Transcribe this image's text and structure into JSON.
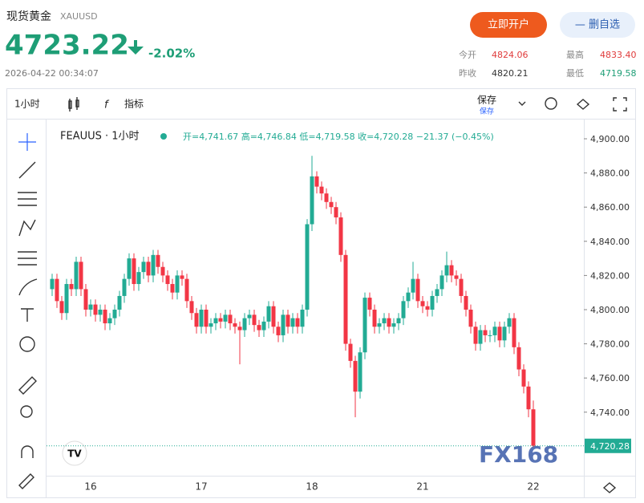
{
  "header": {
    "title": "现货黄金",
    "symbol": "XAUUSD",
    "price": "4723.22",
    "change": "-2.02%",
    "time": "2026-04-22 00:34:07",
    "open_account": "立即开户",
    "remove_watch": "— 删自选",
    "stats": [
      {
        "label": "今开",
        "value": "4824.06"
      },
      {
        "label": "最高",
        "value": "4833.40"
      },
      {
        "label": "昨收",
        "value": "4820.21"
      },
      {
        "label": "最低",
        "value": "4719.58"
      }
    ]
  },
  "toolbar": {
    "interval": "1小时",
    "indicator": "指标",
    "save": "保存",
    "save_sub": "保存"
  },
  "chart_data": {
    "type": "candlestick",
    "legend_symbol": "FEAUUS · 1小时",
    "ohlc_text": "开=4,741.67 高=4,746.84 低=4,719.58 收=4,720.28 −21.37 (−0.45%)",
    "watermark": "FX168",
    "up_color": "#22ab94",
    "down_color": "#f23645",
    "last_price": {
      "value": 4720.28,
      "label": "4,720.28"
    },
    "ylim": [
      4702.8,
      4910.8
    ],
    "yticks": [
      {
        "value": 4740,
        "label": "4,740.00"
      },
      {
        "value": 4760,
        "label": "4,760.00"
      },
      {
        "value": 4780,
        "label": "4,780.00"
      },
      {
        "value": 4800,
        "label": "4,800.00"
      },
      {
        "value": 4820,
        "label": "4,820.00"
      },
      {
        "value": 4840,
        "label": "4,840.00"
      },
      {
        "value": 4860,
        "label": "4,860.00"
      },
      {
        "value": 4880,
        "label": "4,880.00"
      },
      {
        "value": 4900,
        "label": "4,900.00"
      }
    ],
    "categories": [
      null,
      null,
      null,
      null,
      null,
      null,
      null,
      null,
      "16",
      null,
      null,
      null,
      null,
      null,
      null,
      null,
      null,
      null,
      null,
      null,
      null,
      null,
      null,
      null,
      null,
      null,
      null,
      null,
      null,
      null,
      null,
      "17",
      null,
      null,
      null,
      null,
      null,
      null,
      null,
      null,
      null,
      null,
      null,
      null,
      null,
      null,
      null,
      null,
      null,
      null,
      null,
      null,
      null,
      null,
      "18",
      null,
      null,
      null,
      null,
      null,
      null,
      null,
      null,
      null,
      null,
      null,
      null,
      null,
      null,
      null,
      null,
      null,
      null,
      null,
      null,
      null,
      null,
      "21",
      null,
      null,
      null,
      null,
      null,
      null,
      null,
      null,
      null,
      null,
      null,
      null,
      null,
      null,
      null,
      null,
      null,
      null,
      null,
      null,
      null,
      null,
      "22"
    ],
    "open": [
      4812,
      4818,
      4805,
      4798,
      4815,
      4812,
      4828,
      4812,
      4800,
      4803,
      4797,
      4800,
      4792,
      4795,
      4800,
      4808,
      4818,
      4830,
      4815,
      4822,
      4828,
      4820,
      4832,
      4825,
      4820,
      4815,
      4810,
      4820,
      4818,
      4805,
      4798,
      4790,
      4800,
      4790,
      4792,
      4795,
      4793,
      4797,
      4792,
      4790,
      4788,
      4795,
      4797,
      4791,
      4788,
      4793,
      4802,
      4790,
      4785,
      4797,
      4790,
      4795,
      4790,
      4800,
      4850,
      4878,
      4872,
      4868,
      4863,
      4860,
      4854,
      4832,
      4780,
      4770,
      4752,
      4775,
      4807,
      4800,
      4790,
      4792,
      4795,
      4790,
      4792,
      4795,
      4805,
      4810,
      4818,
      4805,
      4802,
      4800,
      4808,
      4812,
      4820,
      4826,
      4820,
      4818,
      4808,
      4800,
      4790,
      4780,
      4788,
      4785,
      4785,
      4790,
      4782,
      4790,
      4795,
      4778,
      4765,
      4755,
      4741.67
    ],
    "high": [
      4821,
      4821,
      4808,
      4818,
      4818,
      4831,
      4831,
      4815,
      4806,
      4806,
      4803,
      4803,
      4798,
      4803,
      4811,
      4821,
      4833,
      4833,
      4825,
      4831,
      4831,
      4835,
      4835,
      4828,
      4823,
      4818,
      4823,
      4823,
      4821,
      4808,
      4801,
      4803,
      4803,
      4795,
      4798,
      4798,
      4800,
      4800,
      4795,
      4793,
      4798,
      4800,
      4800,
      4794,
      4796,
      4805,
      4805,
      4793,
      4800,
      4800,
      4798,
      4798,
      4803,
      4853,
      4890,
      4881,
      4875,
      4871,
      4866,
      4863,
      4857,
      4835,
      4783,
      4773,
      4778,
      4810,
      4810,
      4803,
      4795,
      4798,
      4798,
      4795,
      4798,
      4808,
      4813,
      4828,
      4821,
      4808,
      4805,
      4811,
      4815,
      4823,
      4834,
      4829,
      4823,
      4821,
      4811,
      4803,
      4793,
      4791,
      4791,
      4788,
      4793,
      4793,
      4793,
      4798,
      4798,
      4781,
      4768,
      4758,
      4746.84
    ],
    "low": [
      4808,
      4801,
      4794,
      4794,
      4808,
      4808,
      4808,
      4796,
      4796,
      4793,
      4793,
      4788,
      4788,
      4791,
      4796,
      4804,
      4814,
      4811,
      4811,
      4818,
      4816,
      4816,
      4821,
      4816,
      4811,
      4806,
      4806,
      4814,
      4801,
      4794,
      4786,
      4786,
      4786,
      4786,
      4788,
      4789,
      4789,
      4788,
      4786,
      4768,
      4784,
      4791,
      4787,
      4784,
      4784,
      4789,
      4786,
      4781,
      4781,
      4786,
      4786,
      4786,
      4786,
      4796,
      4846,
      4868,
      4864,
      4859,
      4856,
      4850,
      4828,
      4776,
      4766,
      4737,
      4748,
      4771,
      4796,
      4786,
      4786,
      4788,
      4786,
      4786,
      4788,
      4791,
      4801,
      4806,
      4801,
      4798,
      4796,
      4796,
      4804,
      4808,
      4816,
      4816,
      4814,
      4804,
      4796,
      4786,
      4776,
      4776,
      4781,
      4781,
      4781,
      4778,
      4778,
      4786,
      4774,
      4761,
      4751,
      4737,
      4719.58
    ],
    "close": [
      4818,
      4805,
      4798,
      4815,
      4812,
      4828,
      4812,
      4800,
      4803,
      4797,
      4800,
      4792,
      4795,
      4800,
      4808,
      4818,
      4830,
      4815,
      4822,
      4828,
      4820,
      4832,
      4825,
      4820,
      4815,
      4810,
      4820,
      4818,
      4805,
      4798,
      4790,
      4800,
      4790,
      4792,
      4795,
      4793,
      4797,
      4792,
      4790,
      4788,
      4795,
      4797,
      4791,
      4788,
      4793,
      4802,
      4790,
      4785,
      4797,
      4790,
      4795,
      4790,
      4800,
      4850,
      4878,
      4872,
      4868,
      4863,
      4860,
      4854,
      4832,
      4780,
      4770,
      4752,
      4775,
      4807,
      4800,
      4790,
      4792,
      4795,
      4790,
      4792,
      4795,
      4805,
      4810,
      4818,
      4805,
      4802,
      4800,
      4808,
      4812,
      4820,
      4826,
      4820,
      4818,
      4808,
      4800,
      4790,
      4780,
      4788,
      4785,
      4785,
      4790,
      4782,
      4790,
      4795,
      4778,
      4765,
      4755,
      4741.67,
      4720.28
    ]
  }
}
